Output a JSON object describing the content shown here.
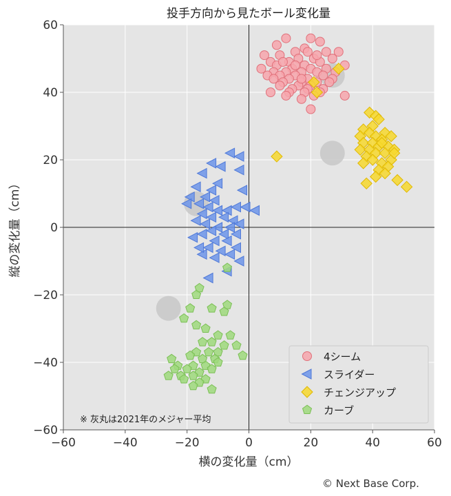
{
  "chart_data": {
    "type": "scatter",
    "title": "投手方向から見たボール変化量",
    "xlabel": "横の変化量（cm）",
    "ylabel": "縦の変化量（cm）",
    "xlim": [
      -60,
      60
    ],
    "ylim": [
      -60,
      60
    ],
    "xticks": [
      -60,
      -40,
      -20,
      0,
      20,
      40,
      60
    ],
    "yticks": [
      -60,
      -40,
      -20,
      0,
      20,
      40,
      60
    ],
    "xtick_labels": [
      "−60",
      "−40",
      "−20",
      "0",
      "20",
      "40",
      "60"
    ],
    "ytick_labels": [
      "−60",
      "−40",
      "−20",
      "0",
      "20",
      "40",
      "60"
    ],
    "grid": true,
    "legend_position": "bottom-right",
    "background": "#e5e5e5",
    "annotation": "※ 灰丸は2021年のメジャー平均",
    "series": [
      {
        "name": "4シーム",
        "marker": "circle",
        "fill": "#f7a6ad",
        "stroke": "#e0707a",
        "points": [
          [
            12,
            56
          ],
          [
            20,
            56
          ],
          [
            23,
            55
          ],
          [
            9,
            54
          ],
          [
            15,
            52
          ],
          [
            18,
            53
          ],
          [
            25,
            52
          ],
          [
            29,
            52
          ],
          [
            5,
            51
          ],
          [
            10,
            51
          ],
          [
            16,
            50
          ],
          [
            21,
            50
          ],
          [
            27,
            50
          ],
          [
            7,
            49
          ],
          [
            13,
            49
          ],
          [
            18,
            48
          ],
          [
            23,
            49
          ],
          [
            31,
            48
          ],
          [
            4,
            47
          ],
          [
            9,
            48
          ],
          [
            14,
            47
          ],
          [
            20,
            47
          ],
          [
            25,
            47
          ],
          [
            8,
            46
          ],
          [
            12,
            46
          ],
          [
            17,
            46
          ],
          [
            22,
            46
          ],
          [
            28,
            46
          ],
          [
            6,
            45
          ],
          [
            10,
            45
          ],
          [
            15,
            45
          ],
          [
            19,
            44
          ],
          [
            24,
            45
          ],
          [
            8,
            44
          ],
          [
            13,
            44
          ],
          [
            17,
            43
          ],
          [
            22,
            43
          ],
          [
            27,
            44
          ],
          [
            11,
            43
          ],
          [
            16,
            42
          ],
          [
            20,
            42
          ],
          [
            10,
            42
          ],
          [
            14,
            41
          ],
          [
            19,
            41
          ],
          [
            24,
            41
          ],
          [
            13,
            40
          ],
          [
            18,
            40
          ],
          [
            23,
            40
          ],
          [
            7,
            40
          ],
          [
            12,
            39
          ],
          [
            17,
            38
          ],
          [
            21,
            39
          ],
          [
            31,
            39
          ],
          [
            20,
            35
          ],
          [
            15,
            48
          ],
          [
            11,
            49
          ],
          [
            19,
            52
          ],
          [
            26,
            43
          ],
          [
            22,
            51
          ],
          [
            17,
            44
          ]
        ]
      },
      {
        "name": "スライダー",
        "marker": "triangle-left",
        "fill": "#6d95ea",
        "stroke": "#4f79d8",
        "points": [
          [
            -6,
            22
          ],
          [
            -3,
            21
          ],
          [
            -3,
            17
          ],
          [
            -12,
            19
          ],
          [
            -9,
            18
          ],
          [
            -15,
            16
          ],
          [
            -10,
            13
          ],
          [
            -17,
            12
          ],
          [
            -12,
            11
          ],
          [
            -2,
            11
          ],
          [
            -19,
            9
          ],
          [
            -14,
            9
          ],
          [
            -11,
            8
          ],
          [
            -16,
            7
          ],
          [
            -13,
            6
          ],
          [
            -10,
            5
          ],
          [
            -20,
            7
          ],
          [
            -7,
            5
          ],
          [
            -4,
            6
          ],
          [
            -1,
            6
          ],
          [
            2,
            5
          ],
          [
            -15,
            4
          ],
          [
            -12,
            3
          ],
          [
            -8,
            3
          ],
          [
            -5,
            2
          ],
          [
            -17,
            2
          ],
          [
            -14,
            1
          ],
          [
            -10,
            0
          ],
          [
            -6,
            0
          ],
          [
            -3,
            1
          ],
          [
            -12,
            -1
          ],
          [
            -8,
            -2
          ],
          [
            -4,
            -2
          ],
          [
            -15,
            -2
          ],
          [
            -11,
            -4
          ],
          [
            -7,
            -4
          ],
          [
            -13,
            -6
          ],
          [
            -9,
            -7
          ],
          [
            -4,
            -6
          ],
          [
            -15,
            -8
          ],
          [
            -11,
            -9
          ],
          [
            -6,
            -8
          ],
          [
            -3,
            -10
          ],
          [
            -13,
            -15
          ],
          [
            -7,
            -13
          ],
          [
            -18,
            -3
          ],
          [
            -16,
            -6
          ]
        ]
      },
      {
        "name": "チェンジアップ",
        "marker": "diamond",
        "fill": "#f7d82e",
        "stroke": "#e0b800",
        "points": [
          [
            39,
            34
          ],
          [
            41,
            33
          ],
          [
            42,
            32
          ],
          [
            37,
            29
          ],
          [
            40,
            30
          ],
          [
            44,
            28
          ],
          [
            46,
            27
          ],
          [
            36,
            27
          ],
          [
            39,
            28
          ],
          [
            41,
            27
          ],
          [
            43,
            26
          ],
          [
            37,
            25
          ],
          [
            40,
            25
          ],
          [
            42,
            24
          ],
          [
            45,
            24
          ],
          [
            47,
            23
          ],
          [
            36,
            23
          ],
          [
            39,
            23
          ],
          [
            41,
            22
          ],
          [
            44,
            22
          ],
          [
            38,
            21
          ],
          [
            40,
            20
          ],
          [
            43,
            19
          ],
          [
            46,
            20
          ],
          [
            9,
            21
          ],
          [
            37,
            19
          ],
          [
            45,
            18
          ],
          [
            42,
            17
          ],
          [
            44,
            16
          ],
          [
            48,
            14
          ],
          [
            41,
            15
          ],
          [
            51,
            12
          ],
          [
            38,
            13
          ],
          [
            47,
            22
          ],
          [
            43,
            25
          ],
          [
            21,
            43
          ],
          [
            22,
            40
          ],
          [
            29,
            47
          ]
        ]
      },
      {
        "name": "カーブ",
        "marker": "pentagon",
        "fill": "#9fd97c",
        "stroke": "#7bbf55",
        "points": [
          [
            -7,
            -12
          ],
          [
            -16,
            -18
          ],
          [
            -17,
            -20
          ],
          [
            -12,
            -24
          ],
          [
            -7,
            -23
          ],
          [
            -8,
            -25
          ],
          [
            -19,
            -24
          ],
          [
            -21,
            -27
          ],
          [
            -17,
            -29
          ],
          [
            -14,
            -30
          ],
          [
            -10,
            -32
          ],
          [
            -6,
            -32
          ],
          [
            -15,
            -34
          ],
          [
            -12,
            -34
          ],
          [
            -8,
            -35
          ],
          [
            -4,
            -35
          ],
          [
            -17,
            -37
          ],
          [
            -13,
            -37
          ],
          [
            -10,
            -37
          ],
          [
            -19,
            -38
          ],
          [
            -15,
            -39
          ],
          [
            -11,
            -39
          ],
          [
            -2,
            -38
          ],
          [
            -25,
            -39
          ],
          [
            -23,
            -41
          ],
          [
            -18,
            -41
          ],
          [
            -14,
            -41
          ],
          [
            -10,
            -40
          ],
          [
            -24,
            -42
          ],
          [
            -20,
            -42
          ],
          [
            -16,
            -43
          ],
          [
            -12,
            -42
          ],
          [
            -22,
            -44
          ],
          [
            -18,
            -44
          ],
          [
            -14,
            -45
          ],
          [
            -26,
            -44
          ],
          [
            -21,
            -45
          ],
          [
            -16,
            -46
          ],
          [
            -12,
            -48
          ],
          [
            -18,
            -47
          ]
        ]
      }
    ],
    "league_averages": [
      [
        27,
        45
      ],
      [
        27,
        22
      ],
      [
        -17,
        7
      ],
      [
        -26,
        -24
      ]
    ]
  },
  "copyright": "© Next Base Corp."
}
